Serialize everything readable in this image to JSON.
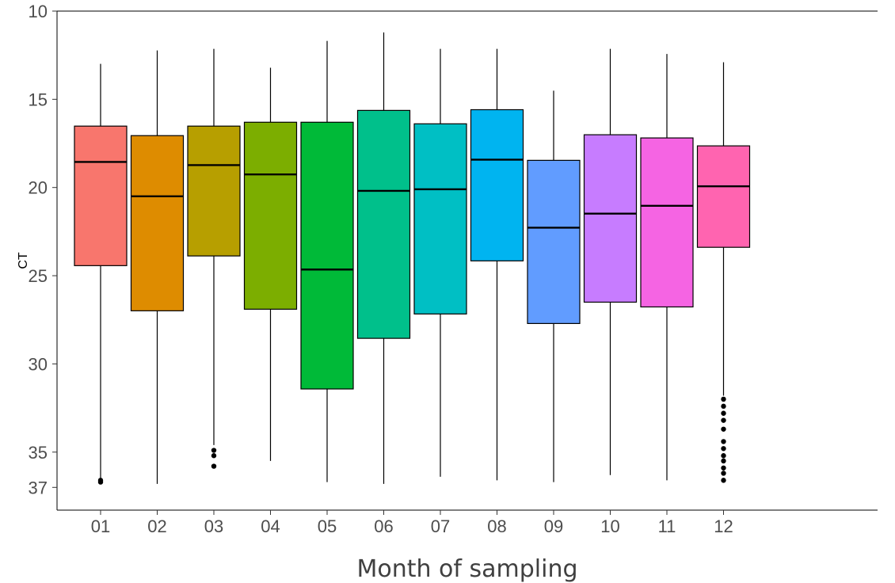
{
  "chart_data": {
    "type": "boxplot",
    "title": "",
    "xlabel": "Month of sampling",
    "ylabel": "CT",
    "y_axis_reversed": true,
    "ylim": [
      10,
      38.3
    ],
    "y_ticks": [
      10,
      15,
      20,
      25,
      30,
      35,
      37
    ],
    "grid": false,
    "legend": "none",
    "categories": [
      "01",
      "02",
      "03",
      "04",
      "05",
      "06",
      "07",
      "08",
      "09",
      "10",
      "11",
      "12"
    ],
    "series": [
      {
        "category": "01",
        "whisker_low": 12.99,
        "q1": 16.52,
        "median": 18.55,
        "q3": 24.43,
        "whisker_high": 36.5,
        "outliers": [
          36.6,
          36.7
        ],
        "color": "#F8766D"
      },
      {
        "category": "02",
        "whisker_low": 12.23,
        "q1": 17.06,
        "median": 20.5,
        "q3": 26.99,
        "whisker_high": 36.8,
        "outliers": [],
        "color": "#DE8C00"
      },
      {
        "category": "03",
        "whisker_low": 12.14,
        "q1": 16.52,
        "median": 18.73,
        "q3": 23.88,
        "whisker_high": 34.6,
        "outliers": [
          34.9,
          35.2,
          35.8
        ],
        "color": "#B79F00"
      },
      {
        "category": "04",
        "whisker_low": 13.21,
        "q1": 16.3,
        "median": 19.26,
        "q3": 26.9,
        "whisker_high": 35.5,
        "outliers": [],
        "color": "#7CAE00"
      },
      {
        "category": "05",
        "whisker_low": 11.69,
        "q1": 16.3,
        "median": 24.65,
        "q3": 31.42,
        "whisker_high": 36.7,
        "outliers": [],
        "color": "#00BA38"
      },
      {
        "category": "06",
        "whisker_low": 11.21,
        "q1": 15.63,
        "median": 20.19,
        "q3": 28.55,
        "whisker_high": 36.8,
        "outliers": [],
        "color": "#00C08B"
      },
      {
        "category": "07",
        "whisker_low": 12.14,
        "q1": 16.39,
        "median": 20.1,
        "q3": 27.17,
        "whisker_high": 36.4,
        "outliers": [],
        "color": "#00BFC4"
      },
      {
        "category": "08",
        "whisker_low": 12.14,
        "q1": 15.59,
        "median": 18.42,
        "q3": 24.16,
        "whisker_high": 36.6,
        "outliers": [],
        "color": "#00B4F0"
      },
      {
        "category": "09",
        "whisker_low": 14.51,
        "q1": 18.46,
        "median": 22.28,
        "q3": 27.71,
        "whisker_high": 36.7,
        "outliers": [],
        "color": "#619CFF"
      },
      {
        "category": "10",
        "whisker_low": 12.14,
        "q1": 17.01,
        "median": 21.48,
        "q3": 26.5,
        "whisker_high": 36.3,
        "outliers": [],
        "color": "#C77CFF"
      },
      {
        "category": "11",
        "whisker_low": 12.43,
        "q1": 17.19,
        "median": 21.04,
        "q3": 26.77,
        "whisker_high": 36.6,
        "outliers": [],
        "color": "#F564E3"
      },
      {
        "category": "12",
        "whisker_low": 12.9,
        "q1": 17.64,
        "median": 19.93,
        "q3": 23.39,
        "whisker_high": 31.8,
        "outliers": [
          32.0,
          32.4,
          32.8,
          33.2,
          33.7,
          34.4,
          34.8,
          35.2,
          35.5,
          35.9,
          36.2,
          36.6
        ],
        "color": "#FF64B0"
      }
    ]
  }
}
